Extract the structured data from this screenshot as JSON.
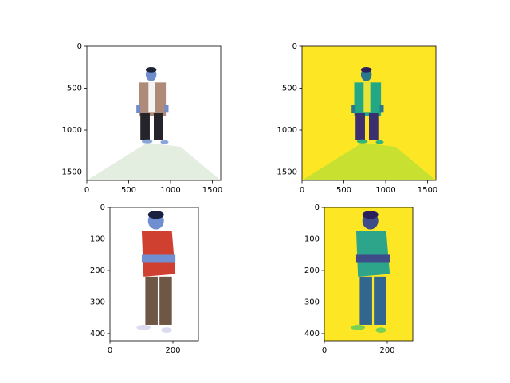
{
  "chart_data": [
    {
      "type": "image",
      "xlim": [
        0,
        1600
      ],
      "ylim": [
        1600,
        0
      ],
      "xticks": [
        0,
        500,
        1000,
        1500
      ],
      "yticks": [
        0,
        500,
        1000,
        1500
      ]
    },
    {
      "type": "image",
      "xlim": [
        0,
        1600
      ],
      "ylim": [
        1600,
        0
      ],
      "xticks": [
        0,
        500,
        1000,
        1500
      ],
      "yticks": [
        0,
        500,
        1000,
        1500
      ]
    },
    {
      "type": "image",
      "xlim": [
        0,
        281
      ],
      "ylim": [
        423,
        0
      ],
      "xticks": [
        0,
        200
      ],
      "yticks": [
        0,
        100,
        200,
        300,
        400
      ]
    },
    {
      "type": "image",
      "xlim": [
        0,
        281
      ],
      "ylim": [
        423,
        0
      ],
      "xticks": [
        0,
        200
      ],
      "yticks": [
        0,
        100,
        200,
        300,
        400
      ]
    }
  ]
}
